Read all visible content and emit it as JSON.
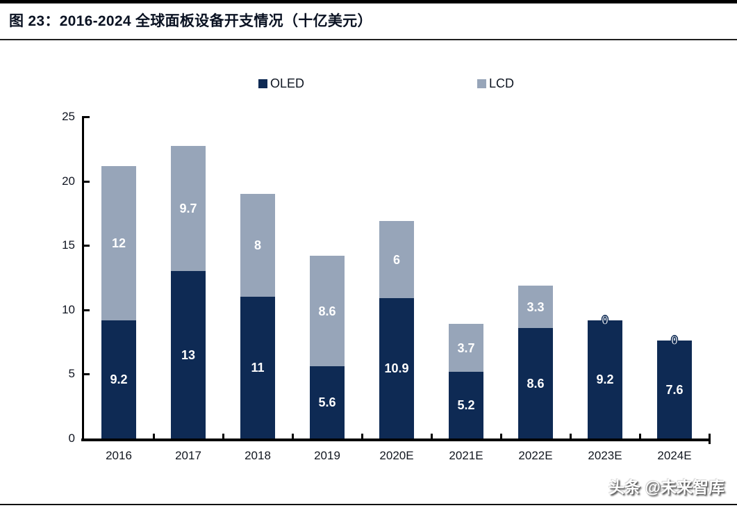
{
  "figure": {
    "title": "图 23：2016-2024 全球面板设备开支情况（十亿美元）",
    "watermark": "头条 @未来智库"
  },
  "chart_data": {
    "type": "bar",
    "stacked": true,
    "title": "2016-2024 全球面板设备开支情况（十亿美元）",
    "categories": [
      "2016",
      "2017",
      "2018",
      "2019",
      "2020E",
      "2021E",
      "2022E",
      "2023E",
      "2024E"
    ],
    "series": [
      {
        "name": "OLED",
        "color": "#0e2a54",
        "values": [
          9.2,
          13,
          11,
          5.6,
          10.9,
          5.2,
          8.6,
          9.2,
          7.6
        ]
      },
      {
        "name": "LCD",
        "color": "#97a5b9",
        "values": [
          12,
          9.7,
          8,
          8.6,
          6,
          3.7,
          3.3,
          0,
          0
        ]
      }
    ],
    "ylim": [
      0,
      25
    ],
    "yticks": [
      0,
      5,
      10,
      15,
      20,
      25
    ],
    "xlabel": "",
    "ylabel": "",
    "grid": false,
    "legend_position": "top",
    "value_label_color": "#ffffff",
    "axis_color": "#000000"
  }
}
